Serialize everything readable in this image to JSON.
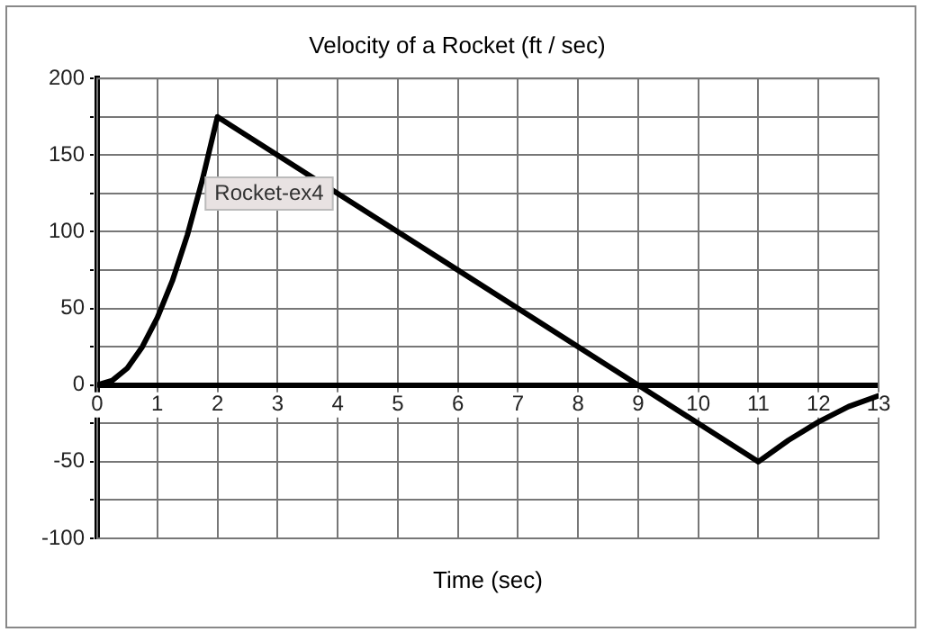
{
  "chart_data": {
    "type": "line",
    "title": "Velocity of a Rocket (ft / sec)",
    "xlabel": "Time (sec)",
    "x": [
      0,
      0.25,
      0.5,
      0.75,
      1,
      1.25,
      1.5,
      1.75,
      2,
      9,
      11,
      11.5,
      12,
      12.5,
      13
    ],
    "series": [
      {
        "color": "#000000",
        "values": [
          0,
          3,
          11,
          25,
          44,
          68,
          98,
          134,
          175,
          0,
          -50,
          -36,
          -24,
          -14,
          -7
        ]
      }
    ],
    "xlim": [
      0,
      13
    ],
    "xticks": [
      0,
      1,
      2,
      3,
      4,
      5,
      6,
      7,
      8,
      9,
      10,
      11,
      12,
      13
    ],
    "ylim": [
      -100,
      200
    ],
    "yticks": [
      -100,
      {
        "value": -75,
        "label": null
      },
      -50,
      {
        "value": -25,
        "label": null
      },
      0,
      {
        "value": 25,
        "label": null
      },
      50,
      {
        "value": 75,
        "label": null
      },
      100,
      {
        "value": 125,
        "label": null
      },
      150,
      {
        "value": 175,
        "label": null
      },
      200
    ],
    "grid": true,
    "legend": false,
    "marker": "none",
    "line_style": "solid",
    "annotations": [
      "Rocket-ex4"
    ]
  }
}
